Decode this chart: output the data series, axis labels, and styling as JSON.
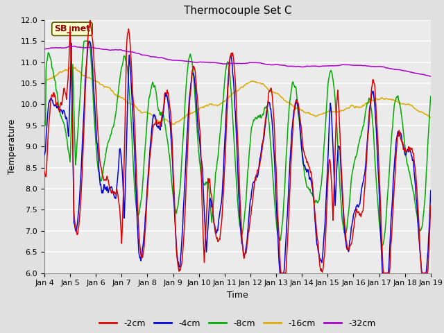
{
  "title": "Thermocouple Set C",
  "xlabel": "Time",
  "ylabel": "Temperature",
  "ylim": [
    6.0,
    12.0
  ],
  "yticks": [
    6.0,
    6.5,
    7.0,
    7.5,
    8.0,
    8.5,
    9.0,
    9.5,
    10.0,
    10.5,
    11.0,
    11.5,
    12.0
  ],
  "colors": {
    "-2cm": "#dd0000",
    "-4cm": "#0000dd",
    "-8cm": "#00aa00",
    "-16cm": "#ddaa00",
    "-32cm": "#aa00cc"
  },
  "legend_labels": [
    "-2cm",
    "-4cm",
    "-8cm",
    "-16cm",
    "-32cm"
  ],
  "annotation_text": "SB_met",
  "annotation_color": "#8B0000",
  "annotation_bg": "#ffffcc",
  "bg_color": "#e0e0e0",
  "plot_bg": "#ebebeb",
  "title_fontsize": 11,
  "label_fontsize": 9,
  "tick_fontsize": 8,
  "legend_fontsize": 9,
  "line_width": 1.1
}
